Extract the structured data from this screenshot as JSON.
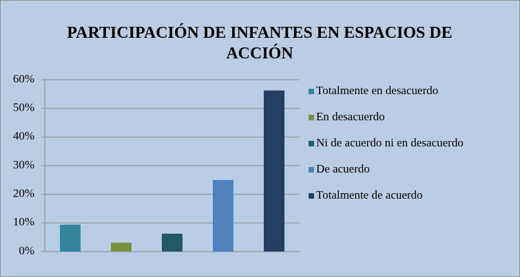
{
  "chart_data": {
    "type": "bar",
    "title": "PARTICIPACIÓN DE INFANTES EN ESPACIOS DE ACCIÓN",
    "series": [
      {
        "name": "Totalmente en desacuerdo",
        "color": "#31859c",
        "values": [
          9.4
        ]
      },
      {
        "name": "En desacuerdo",
        "color": "#77933c",
        "values": [
          3.1
        ]
      },
      {
        "name": "Ni de acuerdo ni en desacuerdo",
        "color": "#215968",
        "values": [
          6.25
        ]
      },
      {
        "name": "De acuerdo",
        "color": "#4f81bd",
        "values": [
          25
        ]
      },
      {
        "name": "Totalmente de acuerdo",
        "color": "#243f60",
        "values": [
          56.25
        ]
      }
    ],
    "ylim": [
      0,
      60
    ],
    "yticks": [
      {
        "value": 0,
        "label": "0%"
      },
      {
        "value": 10,
        "label": "10%"
      },
      {
        "value": 20,
        "label": "20%"
      },
      {
        "value": 30,
        "label": "30%"
      },
      {
        "value": 40,
        "label": "40%"
      },
      {
        "value": 50,
        "label": "50%"
      },
      {
        "value": 60,
        "label": "60%"
      }
    ],
    "grid": true,
    "legend": "right"
  }
}
